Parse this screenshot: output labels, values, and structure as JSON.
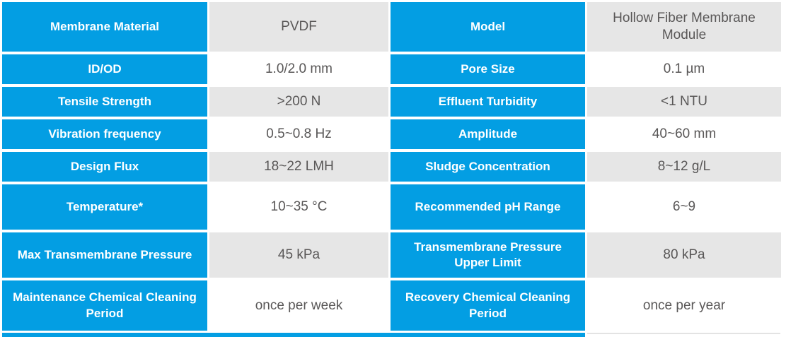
{
  "table": {
    "colors": {
      "accent_blue": "#039EE3",
      "value_cell_gray": "#E6E6E6",
      "value_text": "#595757",
      "label_text": "#FFFFFF"
    },
    "rows": [
      {
        "left_label": "Membrane Material",
        "left_value": "PVDF",
        "right_label": "Model",
        "right_value": "Hollow Fiber Membrane Module",
        "shade": "gray"
      },
      {
        "left_label": "ID/OD",
        "left_value": "1.0/2.0 mm",
        "right_label": "Pore Size",
        "right_value": "0.1 µm",
        "shade": "white"
      },
      {
        "left_label": "Tensile Strength",
        "left_value": ">200 N",
        "right_label": "Effluent Turbidity",
        "right_value": "<1 NTU",
        "shade": "gray"
      },
      {
        "left_label": "Vibration frequency",
        "left_value": "0.5~0.8 Hz",
        "right_label": "Amplitude",
        "right_value": "40~60 mm",
        "shade": "white"
      },
      {
        "left_label": "Design Flux",
        "left_value": "18~22 LMH",
        "right_label": "Sludge Concentration",
        "right_value": "8~12 g/L",
        "shade": "gray"
      },
      {
        "left_label": "Temperature*",
        "left_value": "10~35 °C",
        "right_label": "Recommended pH Range",
        "right_value": "6~9",
        "shade": "white"
      },
      {
        "left_label": "Max Transmembrane Pressure",
        "left_value": "45 kPa",
        "right_label": "Transmembrane Pressure Upper Limit",
        "right_value": "80 kPa",
        "shade": "gray"
      },
      {
        "left_label": "Maintenance Chemical Cleaning Period",
        "left_value": "once per week",
        "right_label": "Recovery Chemical Cleaning Period",
        "right_value": "once per year",
        "shade": "white"
      }
    ]
  }
}
